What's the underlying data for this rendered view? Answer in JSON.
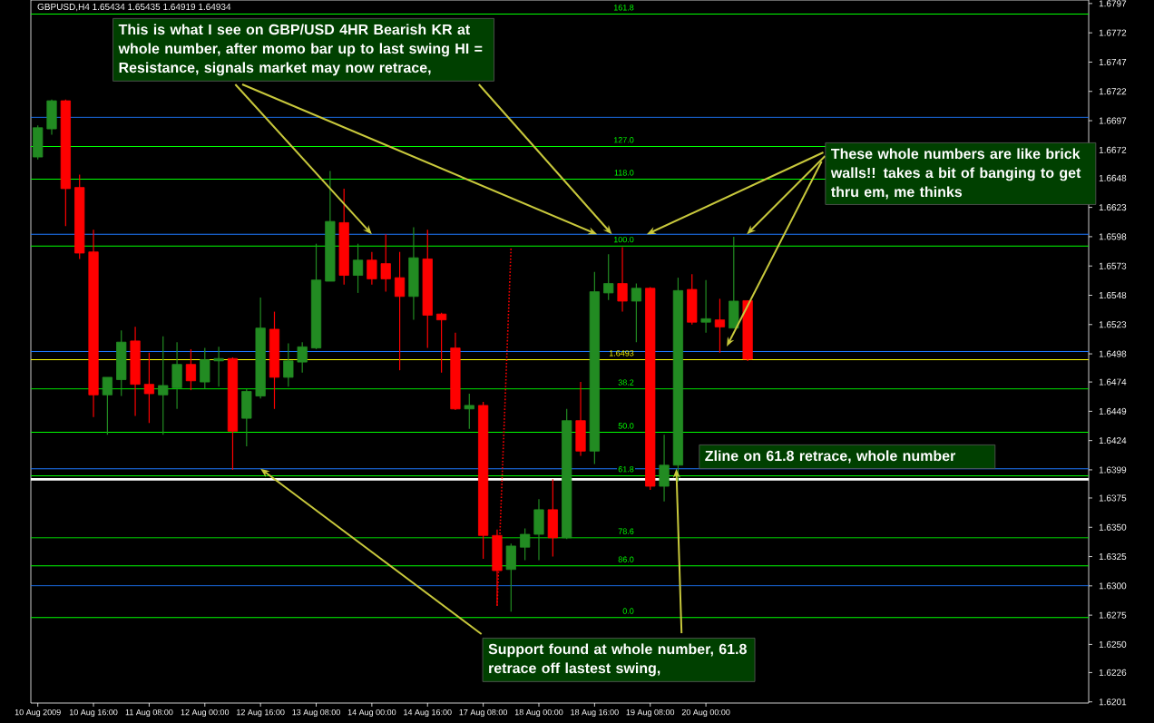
{
  "chart_data": {
    "type": "candlestick",
    "title": "GBPUSD,H4 1.65434 1.65435 1.64919 1.64934",
    "categories": [
      "10 Aug 2009",
      null,
      null,
      null,
      "10 Aug 16:00",
      null,
      null,
      null,
      "11 Aug 08:00",
      null,
      null,
      null,
      "12 Aug 00:00",
      null,
      null,
      null,
      "12 Aug 16:00",
      null,
      null,
      null,
      "13 Aug 08:00",
      null,
      null,
      null,
      "14 Aug 00:00",
      null,
      null,
      null,
      "14 Aug 16:00",
      null,
      null,
      null,
      "17 Aug 08:00",
      null,
      null,
      null,
      "18 Aug 00:00",
      null,
      null,
      null,
      "18 Aug 16:00",
      null,
      null,
      null,
      "19 Aug 08:00",
      null,
      null,
      null,
      "20 Aug 00:00",
      null,
      null,
      null,
      null,
      null,
      null,
      null,
      null,
      null,
      null,
      null,
      null,
      null,
      null,
      null,
      null,
      null,
      null,
      null,
      null,
      null,
      null,
      null,
      null,
      null,
      null,
      null
    ],
    "ohlc": [
      [
        1.6666,
        1.6693,
        1.6664,
        1.6691
      ],
      [
        1.669,
        1.6715,
        1.6685,
        1.6714
      ],
      [
        1.6714,
        1.6715,
        1.6607,
        1.6639
      ],
      [
        1.664,
        1.6651,
        1.6579,
        1.6584
      ],
      [
        1.6585,
        1.6604,
        1.6444,
        1.6463
      ],
      [
        1.6463,
        1.6478,
        1.6429,
        1.6478
      ],
      [
        1.6476,
        1.6518,
        1.6462,
        1.6508
      ],
      [
        1.6509,
        1.6521,
        1.6445,
        1.6472
      ],
      [
        1.6472,
        1.6499,
        1.6439,
        1.6464
      ],
      [
        1.6463,
        1.6513,
        1.6429,
        1.6471
      ],
      [
        1.6469,
        1.6508,
        1.6451,
        1.6489
      ],
      [
        1.6489,
        1.6502,
        1.6467,
        1.6475
      ],
      [
        1.6474,
        1.6503,
        1.6468,
        1.6493
      ],
      [
        1.6492,
        1.6504,
        1.647,
        1.6494
      ],
      [
        1.6494,
        1.6495,
        1.6399,
        1.6432
      ],
      [
        1.6443,
        1.6468,
        1.6419,
        1.6466
      ],
      [
        1.6462,
        1.6546,
        1.646,
        1.652
      ],
      [
        1.6519,
        1.6534,
        1.6451,
        1.6478
      ],
      [
        1.6478,
        1.6507,
        1.647,
        1.6492
      ],
      [
        1.6491,
        1.6508,
        1.6482,
        1.6504
      ],
      [
        1.6503,
        1.6592,
        1.6502,
        1.6561
      ],
      [
        1.656,
        1.6654,
        1.656,
        1.6611
      ],
      [
        1.661,
        1.6639,
        1.6557,
        1.6565
      ],
      [
        1.6565,
        1.6592,
        1.655,
        1.6578
      ],
      [
        1.6578,
        1.6585,
        1.6557,
        1.6562
      ],
      [
        1.6575,
        1.66,
        1.6551,
        1.6562
      ],
      [
        1.6563,
        1.6585,
        1.6484,
        1.6547
      ],
      [
        1.6547,
        1.6606,
        1.6527,
        1.658
      ],
      [
        1.6579,
        1.6604,
        1.6503,
        1.6531
      ],
      [
        1.6532,
        1.6533,
        1.6482,
        1.6527
      ],
      [
        1.6503,
        1.6516,
        1.645,
        1.6451
      ],
      [
        1.6451,
        1.6464,
        1.6434,
        1.6454
      ],
      [
        1.6454,
        1.6457,
        1.6323,
        1.6343
      ],
      [
        1.6343,
        1.6348,
        1.6283,
        1.6313
      ],
      [
        1.6314,
        1.6336,
        1.6278,
        1.6334
      ],
      [
        1.6333,
        1.6349,
        1.6322,
        1.6344
      ],
      [
        1.6344,
        1.6374,
        1.6322,
        1.6365
      ],
      [
        1.6365,
        1.6391,
        1.6325,
        1.6341
      ],
      [
        1.6341,
        1.6451,
        1.634,
        1.6441
      ],
      [
        1.6441,
        1.6474,
        1.6411,
        1.6415
      ],
      [
        1.6415,
        1.6568,
        1.6404,
        1.6551
      ],
      [
        1.655,
        1.6583,
        1.6544,
        1.6558
      ],
      [
        1.6558,
        1.6589,
        1.6534,
        1.6543
      ],
      [
        1.6543,
        1.6558,
        1.6508,
        1.6554
      ],
      [
        1.6554,
        1.6555,
        1.6382,
        1.6385
      ],
      [
        1.6385,
        1.6429,
        1.6372,
        1.6403
      ],
      [
        1.6403,
        1.6563,
        1.6389,
        1.6552
      ],
      [
        1.6553,
        1.6566,
        1.6523,
        1.6525
      ],
      [
        1.6525,
        1.6561,
        1.6516,
        1.6528
      ],
      [
        1.6527,
        1.6545,
        1.6499,
        1.6521
      ],
      [
        1.652,
        1.6598,
        1.652,
        1.6543
      ],
      [
        1.65434,
        1.65435,
        1.64919,
        1.64934
      ],
      null,
      null,
      null,
      null,
      null,
      null,
      null,
      null,
      null,
      null,
      null,
      null,
      null,
      null,
      null,
      null,
      null,
      null,
      null,
      null,
      null,
      null,
      null,
      null
    ],
    "colors": [
      "#228b22",
      "#228b22",
      "#ff0000",
      "#ff0000",
      "#ff0000",
      "#228b22",
      "#228b22",
      "#ff0000",
      "#ff0000",
      "#228b22",
      "#228b22",
      "#ff0000",
      "#228b22",
      "#228b22",
      "#ff0000",
      "#228b22",
      "#228b22",
      "#ff0000",
      "#228b22",
      "#228b22",
      "#228b22",
      "#228b22",
      "#ff0000",
      "#228b22",
      "#ff0000",
      "#ff0000",
      "#ff0000",
      "#228b22",
      "#ff0000",
      "#ff0000",
      "#ff0000",
      "#228b22",
      "#ff0000",
      "#ff0000",
      "#228b22",
      "#228b22",
      "#228b22",
      "#ff0000",
      "#228b22",
      "#ff0000",
      "#228b22",
      "#228b22",
      "#ff0000",
      "#228b22",
      "#ff0000",
      "#228b22",
      "#228b22",
      "#ff0000",
      "#228b22",
      "#ff0000",
      "#228b22",
      "#ff0000",
      null,
      null,
      null,
      null,
      null,
      null,
      null,
      null,
      null,
      null,
      null,
      null,
      null,
      null,
      null,
      null,
      null,
      null,
      null,
      null,
      null,
      null,
      null,
      null
    ],
    "series": [
      {
        "type": "line",
        "color": "#ff0000",
        "line_style": "dotted",
        "values": [
          null,
          null,
          null,
          null,
          null,
          null,
          null,
          null,
          null,
          null,
          null,
          null,
          null,
          null,
          null,
          null,
          null,
          null,
          null,
          null,
          null,
          null,
          null,
          null,
          null,
          null,
          null,
          null,
          null,
          null,
          null,
          null,
          null,
          1.6283,
          1.6589,
          null,
          null,
          null,
          null,
          null,
          null,
          null,
          null,
          null,
          null,
          null,
          null,
          null,
          null,
          null,
          null,
          null,
          null,
          null,
          null,
          null,
          null,
          null,
          null,
          null,
          null,
          null,
          null,
          null,
          null,
          null,
          null,
          null,
          null,
          null,
          null,
          null,
          null,
          null,
          null,
          null
        ]
      }
    ],
    "ylim": [
      1.62,
      1.68
    ],
    "yticks": [
      1.6797,
      1.6772,
      1.6747,
      1.6722,
      1.6697,
      1.6672,
      1.6648,
      1.6623,
      1.6598,
      1.6573,
      1.6548,
      1.6523,
      1.6498,
      1.6474,
      1.6449,
      1.6424,
      1.6399,
      1.6375,
      {
        "value": 1.635,
        "label": "1.6350"
      },
      1.6325,
      {
        "value": 1.63,
        "label": "1.6300"
      },
      1.6275,
      {
        "value": 1.625,
        "label": "1.6250"
      },
      1.6226,
      1.6201
    ],
    "ref_lines": [
      {
        "axis": "y",
        "value": 1.67,
        "color": "#1e78ff"
      },
      {
        "axis": "y",
        "value": 1.66,
        "color": "#1e78ff"
      },
      {
        "axis": "y",
        "value": 1.65,
        "color": "#1e78ff"
      },
      {
        "axis": "y",
        "value": 1.64,
        "color": "#1e78ff"
      },
      {
        "axis": "y",
        "value": 1.63,
        "color": "#1e78ff"
      },
      {
        "axis": "y",
        "value": 1.6788,
        "color": "#00ff00"
      },
      {
        "axis": "y",
        "value": 1.6675,
        "color": "#00ff00"
      },
      {
        "axis": "y",
        "value": 1.6647,
        "color": "#00ff00"
      },
      {
        "axis": "y",
        "value": 1.659,
        "color": "#00ff00"
      },
      {
        "axis": "y",
        "value": 1.6468,
        "color": "#00ff00"
      },
      {
        "axis": "y",
        "value": 1.6431,
        "color": "#00ff00"
      },
      {
        "axis": "y",
        "value": 1.6394,
        "color": "#00ff00"
      },
      {
        "axis": "y",
        "value": 1.6341,
        "color": "#00ff00"
      },
      {
        "axis": "y",
        "value": 1.6317,
        "color": "#00ff00"
      },
      {
        "axis": "y",
        "value": 1.6273,
        "color": "#00ff00"
      },
      {
        "axis": "y",
        "value": 1.6391,
        "color": "#ffffff"
      },
      {
        "axis": "y",
        "value": 1.6493,
        "label": "1.6493",
        "color": "#ffff00"
      }
    ],
    "annotations": [
      {
        "text": "This is what I see on GBP/USD 4HR Bearish KR at whole number, after momo bar up to last swing HI = Resistance, signals market may now retrace,",
        "x": "14 Aug 00:00",
        "y": 1.66
      },
      {
        "text": "These whole numbers are like brick walls!! takes a bit of banging to get thru em, me thinks",
        "y": 1.66
      },
      "Zline on 61.8 retrace, whole number",
      {
        "text": "Support found at whole number, 61.8 retrace off lastest swing,",
        "x": "12 Aug 16:00",
        "y": 1.64
      },
      {
        "text": "161.8",
        "y": 1.6788
      },
      {
        "text": "127.0",
        "y": 1.6675
      },
      {
        "text": "118.0",
        "y": 1.6647
      },
      {
        "text": "100.0",
        "y": 1.659
      },
      {
        "text": "38.2",
        "y": 1.6468
      },
      {
        "text": "50.0",
        "y": 1.6431
      },
      {
        "text": "61.8",
        "y": 1.6394
      },
      {
        "text": "78.6",
        "y": 1.6341
      },
      {
        "text": "86.0",
        "y": 1.6317
      },
      {
        "text": "0.0",
        "y": 1.6273
      }
    ]
  }
}
